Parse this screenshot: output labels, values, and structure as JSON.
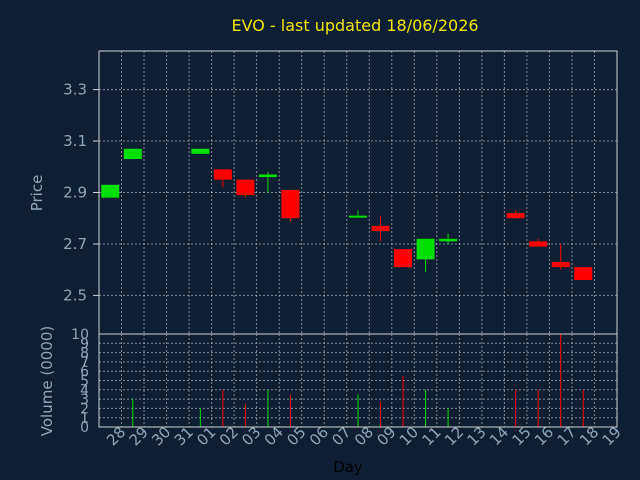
{
  "chart_data": {
    "type": "candlestick",
    "title": "EVO - last updated 18/06/2026",
    "xlabel": "Day",
    "price_panel": {
      "ylabel": "Price",
      "ylim": [
        2.35,
        3.45
      ],
      "ticks": [
        "2.5",
        "2.7",
        "2.9",
        "3.1",
        "3.3"
      ],
      "tick_values": [
        2.5,
        2.7,
        2.9,
        3.1,
        3.3
      ],
      "grid": true
    },
    "volume_panel": {
      "ylabel": "Volume (0000)",
      "ylim": [
        0,
        10
      ],
      "ticks": [
        "0",
        "1",
        "2",
        "3",
        "4",
        "5",
        "6",
        "7",
        "8",
        "9",
        "10"
      ],
      "tick_values": [
        0,
        1,
        2,
        3,
        4,
        5,
        6,
        7,
        8,
        9,
        10
      ]
    },
    "x_ticks": [
      "28",
      "29",
      "30",
      "31",
      "01",
      "02",
      "03",
      "04",
      "05",
      "06",
      "07",
      "08",
      "09",
      "10",
      "11",
      "12",
      "13",
      "14",
      "15",
      "16",
      "17",
      "18",
      "19"
    ],
    "colors": {
      "up": "#00e000",
      "down": "#ff0000",
      "background": "#0f1f33",
      "grid": "#d0d0d0",
      "title": "#f2e600",
      "text": "#8fa6bf"
    },
    "candles": [
      {
        "day": "28",
        "open": 2.88,
        "high": 2.93,
        "low": 2.88,
        "close": 2.93,
        "volume": 0
      },
      {
        "day": "29",
        "open": 3.03,
        "high": 3.07,
        "low": 3.03,
        "close": 3.07,
        "volume": 3
      },
      {
        "day": "01",
        "open": 3.05,
        "high": 3.07,
        "low": 3.05,
        "close": 3.07,
        "volume": 2
      },
      {
        "day": "02",
        "open": 2.99,
        "high": 2.99,
        "low": 2.92,
        "close": 2.95,
        "volume": 4
      },
      {
        "day": "03",
        "open": 2.95,
        "high": 2.95,
        "low": 2.88,
        "close": 2.89,
        "volume": 2.5
      },
      {
        "day": "04",
        "open": 2.96,
        "high": 2.98,
        "low": 2.9,
        "close": 2.97,
        "volume": 4
      },
      {
        "day": "05",
        "open": 2.91,
        "high": 2.91,
        "low": 2.79,
        "close": 2.8,
        "volume": 3.5
      },
      {
        "day": "08",
        "open": 2.81,
        "high": 2.83,
        "low": 2.81,
        "close": 2.81,
        "volume": 3.5
      },
      {
        "day": "09",
        "open": 2.77,
        "high": 2.81,
        "low": 2.71,
        "close": 2.75,
        "volume": 2.7
      },
      {
        "day": "10",
        "open": 2.68,
        "high": 2.68,
        "low": 2.61,
        "close": 2.61,
        "volume": 5.5
      },
      {
        "day": "11",
        "open": 2.64,
        "high": 2.72,
        "low": 2.59,
        "close": 2.72,
        "volume": 4
      },
      {
        "day": "12",
        "open": 2.71,
        "high": 2.74,
        "low": 2.7,
        "close": 2.72,
        "volume": 2
      },
      {
        "day": "15",
        "open": 2.82,
        "high": 2.83,
        "low": 2.8,
        "close": 2.8,
        "volume": 4
      },
      {
        "day": "16",
        "open": 2.71,
        "high": 2.72,
        "low": 2.69,
        "close": 2.69,
        "volume": 4
      },
      {
        "day": "17",
        "open": 2.63,
        "high": 2.7,
        "low": 2.6,
        "close": 2.61,
        "volume": 10
      },
      {
        "day": "18",
        "open": 2.61,
        "high": 2.61,
        "low": 2.56,
        "close": 2.56,
        "volume": 4
      }
    ]
  }
}
